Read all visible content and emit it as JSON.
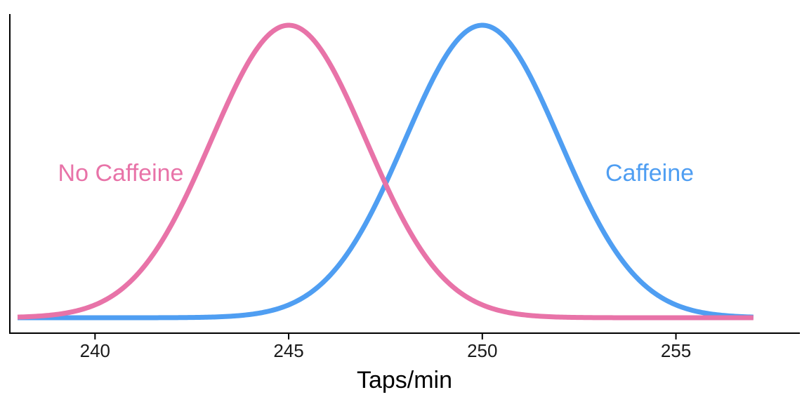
{
  "chart_data": {
    "type": "line",
    "title": "",
    "xlabel": "Taps/min",
    "ylabel": "",
    "xlim": [
      237.8,
      258.2
    ],
    "x_ticks": [
      240,
      245,
      250,
      255
    ],
    "tick_labels": [
      "240",
      "245",
      "250",
      "255"
    ],
    "y_ticks_shown": false,
    "grid": false,
    "legend": "none",
    "x_range": [
      238,
      257
    ],
    "series": [
      {
        "name": "No Caffeine",
        "distribution": "normal",
        "mean": 245,
        "sd": 2,
        "color": "#E873A8"
      },
      {
        "name": "Caffeine",
        "distribution": "normal",
        "mean": 250,
        "sd": 2,
        "color": "#4F9EF2"
      }
    ]
  }
}
